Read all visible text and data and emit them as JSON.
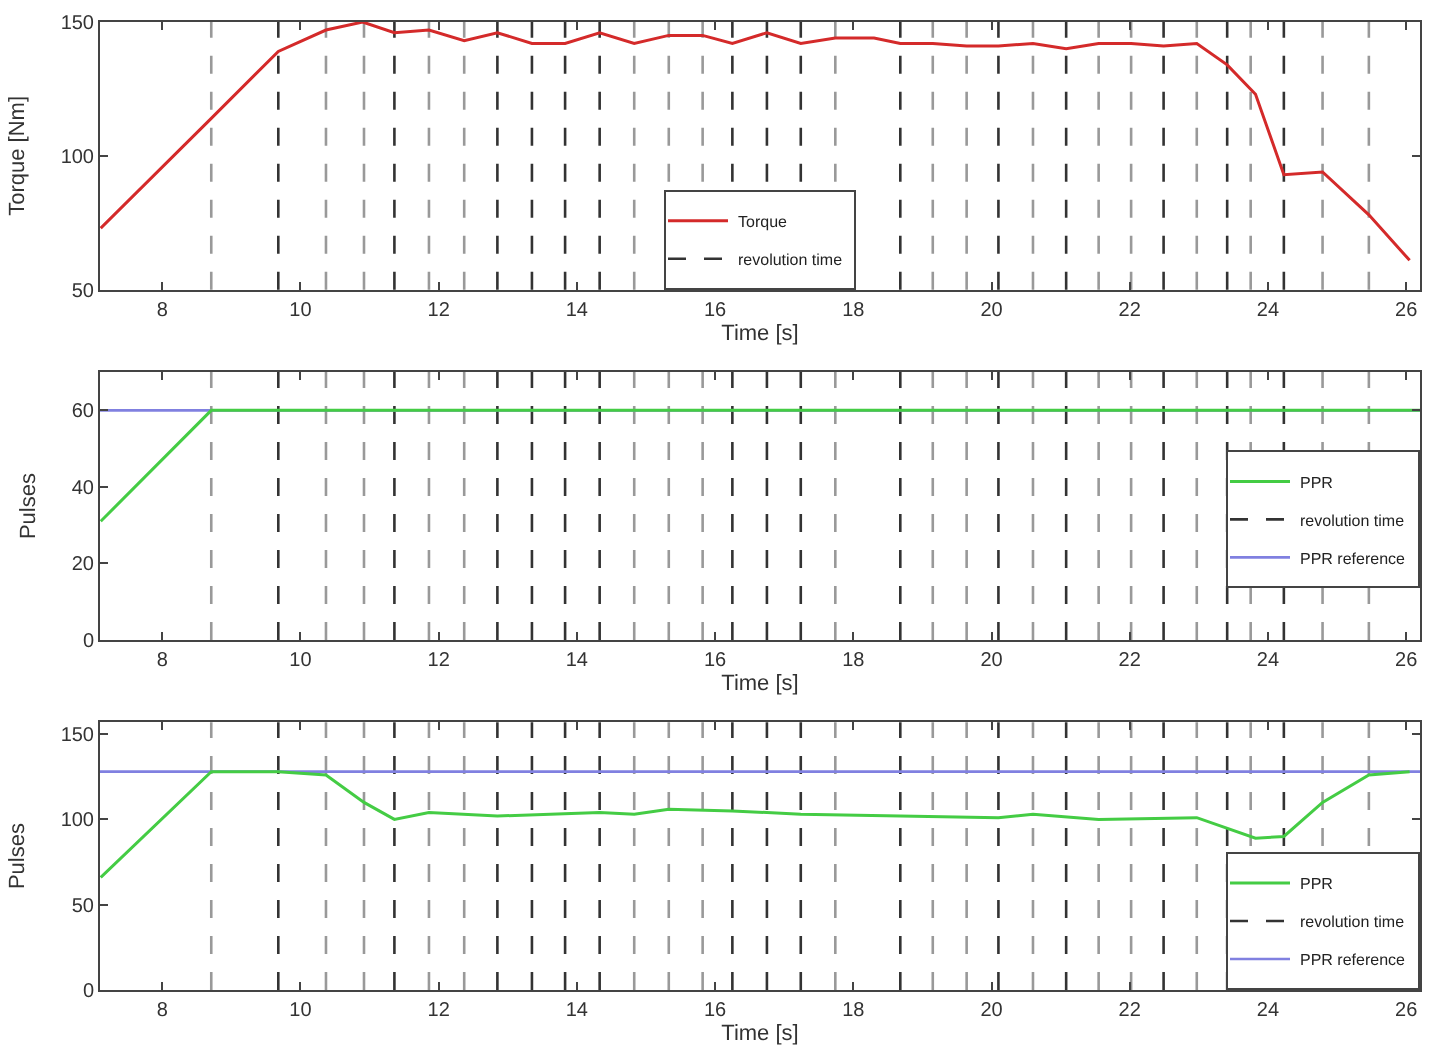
{
  "chart_data": [
    {
      "type": "line",
      "xlabel": "Time [s]",
      "ylabel": "Torque [Nm]",
      "xlim": [
        7.1,
        26.2
      ],
      "xticks": [
        8,
        10,
        12,
        14,
        16,
        18,
        20,
        22,
        24,
        26
      ],
      "ylim": [
        50,
        150
      ],
      "yticks": [
        50,
        100,
        150
      ],
      "legend": "bottom",
      "grid": false,
      "line_style": "solid",
      "series": [
        {
          "name": "Torque",
          "color": "#d42a2a",
          "x": [
            7.11,
            8.71,
            9.68,
            10.37,
            10.9,
            11.36,
            11.86,
            12.37,
            12.85,
            13.35,
            13.83,
            14.33,
            14.83,
            15.33,
            15.82,
            16.25,
            16.75,
            17.24,
            17.74,
            18.3,
            18.68,
            19.15,
            19.64,
            20.1,
            20.6,
            21.08,
            21.55,
            22.02,
            22.49,
            22.97,
            23.41,
            23.82,
            24.23,
            24.79,
            25.46,
            26.05
          ],
          "values": [
            73,
            114,
            139,
            147,
            150,
            146,
            147,
            143,
            146,
            142,
            142,
            146,
            142,
            145,
            145,
            142,
            146,
            142,
            144,
            144,
            142,
            142,
            141,
            141,
            142,
            140,
            142,
            142,
            141,
            142,
            134,
            123,
            93,
            94,
            78,
            61
          ]
        }
      ],
      "ref_lines": [
        {
          "axis": "x",
          "value": 8.71,
          "color": "#999999",
          "line_style": "dashed"
        },
        {
          "axis": "x",
          "value": 9.68,
          "color": "#333333",
          "line_style": "dashed",
          "label": "revolution time"
        },
        {
          "axis": "x",
          "value": 10.37,
          "color": "#999999",
          "line_style": "dashed"
        },
        {
          "axis": "x",
          "value": 10.92,
          "color": "#999999",
          "line_style": "dashed"
        },
        {
          "axis": "x",
          "value": 11.36,
          "color": "#333333",
          "line_style": "dashed"
        },
        {
          "axis": "x",
          "value": 11.86,
          "color": "#999999",
          "line_style": "dashed"
        },
        {
          "axis": "x",
          "value": 12.37,
          "color": "#999999",
          "line_style": "dashed"
        },
        {
          "axis": "x",
          "value": 12.85,
          "color": "#333333",
          "line_style": "dashed"
        },
        {
          "axis": "x",
          "value": 13.35,
          "color": "#333333",
          "line_style": "dashed"
        },
        {
          "axis": "x",
          "value": 13.83,
          "color": "#333333",
          "line_style": "dashed"
        },
        {
          "axis": "x",
          "value": 14.33,
          "color": "#333333",
          "line_style": "dashed"
        },
        {
          "axis": "x",
          "value": 14.83,
          "color": "#999999",
          "line_style": "dashed"
        },
        {
          "axis": "x",
          "value": 15.33,
          "color": "#999999",
          "line_style": "dashed"
        },
        {
          "axis": "x",
          "value": 15.82,
          "color": "#999999",
          "line_style": "dashed"
        },
        {
          "axis": "x",
          "value": 16.25,
          "color": "#333333",
          "line_style": "dashed"
        },
        {
          "axis": "x",
          "value": 16.75,
          "color": "#333333",
          "line_style": "dashed"
        },
        {
          "axis": "x",
          "value": 17.24,
          "color": "#333333",
          "line_style": "dashed"
        },
        {
          "axis": "x",
          "value": 17.74,
          "color": "#999999",
          "line_style": "dashed"
        },
        {
          "axis": "x",
          "value": 18.68,
          "color": "#333333",
          "line_style": "dashed"
        },
        {
          "axis": "x",
          "value": 19.15,
          "color": "#999999",
          "line_style": "dashed"
        },
        {
          "axis": "x",
          "value": 19.64,
          "color": "#999999",
          "line_style": "dashed"
        },
        {
          "axis": "x",
          "value": 20.1,
          "color": "#333333",
          "line_style": "dashed"
        },
        {
          "axis": "x",
          "value": 20.6,
          "color": "#999999",
          "line_style": "dashed"
        },
        {
          "axis": "x",
          "value": 21.08,
          "color": "#333333",
          "line_style": "dashed"
        },
        {
          "axis": "x",
          "value": 21.55,
          "color": "#999999",
          "line_style": "dashed"
        },
        {
          "axis": "x",
          "value": 22.02,
          "color": "#999999",
          "line_style": "dashed"
        },
        {
          "axis": "x",
          "value": 22.49,
          "color": "#333333",
          "line_style": "dashed"
        },
        {
          "axis": "x",
          "value": 22.97,
          "color": "#999999",
          "line_style": "dashed"
        },
        {
          "axis": "x",
          "value": 23.41,
          "color": "#333333",
          "line_style": "dashed"
        },
        {
          "axis": "x",
          "value": 23.75,
          "color": "#999999",
          "line_style": "dashed"
        },
        {
          "axis": "x",
          "value": 24.23,
          "color": "#333333",
          "line_style": "dashed"
        },
        {
          "axis": "x",
          "value": 24.79,
          "color": "#999999",
          "line_style": "dashed"
        },
        {
          "axis": "x",
          "value": 25.46,
          "color": "#999999",
          "line_style": "dashed"
        }
      ]
    },
    {
      "type": "line",
      "xlabel": "Time [s]",
      "ylabel": "Pulses",
      "xlim": [
        7.1,
        26.2
      ],
      "xticks": [
        8,
        10,
        12,
        14,
        16,
        18,
        20,
        22,
        24,
        26
      ],
      "ylim": [
        0,
        70
      ],
      "yticks": [
        0,
        20,
        40,
        60
      ],
      "legend": "right",
      "grid": false,
      "line_style": "solid",
      "series": [
        {
          "name": "PPR",
          "color": "#44cc44",
          "x": [
            7.11,
            8.71,
            26.2
          ],
          "values": [
            31,
            60,
            60
          ]
        }
      ],
      "ref_lines": [
        {
          "axis": "x",
          "value": 8.71,
          "color": "#999999",
          "line_style": "dashed"
        },
        {
          "axis": "x",
          "value": 9.68,
          "color": "#333333",
          "line_style": "dashed",
          "label": "revolution time"
        },
        {
          "axis": "x",
          "value": 10.37,
          "color": "#999999",
          "line_style": "dashed"
        },
        {
          "axis": "x",
          "value": 10.92,
          "color": "#999999",
          "line_style": "dashed"
        },
        {
          "axis": "x",
          "value": 11.36,
          "color": "#333333",
          "line_style": "dashed"
        },
        {
          "axis": "x",
          "value": 11.86,
          "color": "#999999",
          "line_style": "dashed"
        },
        {
          "axis": "x",
          "value": 12.37,
          "color": "#999999",
          "line_style": "dashed"
        },
        {
          "axis": "x",
          "value": 12.85,
          "color": "#333333",
          "line_style": "dashed"
        },
        {
          "axis": "x",
          "value": 13.35,
          "color": "#333333",
          "line_style": "dashed"
        },
        {
          "axis": "x",
          "value": 13.83,
          "color": "#333333",
          "line_style": "dashed"
        },
        {
          "axis": "x",
          "value": 14.33,
          "color": "#333333",
          "line_style": "dashed"
        },
        {
          "axis": "x",
          "value": 14.83,
          "color": "#999999",
          "line_style": "dashed"
        },
        {
          "axis": "x",
          "value": 15.33,
          "color": "#999999",
          "line_style": "dashed"
        },
        {
          "axis": "x",
          "value": 15.82,
          "color": "#999999",
          "line_style": "dashed"
        },
        {
          "axis": "x",
          "value": 16.25,
          "color": "#333333",
          "line_style": "dashed"
        },
        {
          "axis": "x",
          "value": 16.75,
          "color": "#333333",
          "line_style": "dashed"
        },
        {
          "axis": "x",
          "value": 17.24,
          "color": "#333333",
          "line_style": "dashed"
        },
        {
          "axis": "x",
          "value": 17.74,
          "color": "#999999",
          "line_style": "dashed"
        },
        {
          "axis": "x",
          "value": 18.68,
          "color": "#333333",
          "line_style": "dashed"
        },
        {
          "axis": "x",
          "value": 19.15,
          "color": "#999999",
          "line_style": "dashed"
        },
        {
          "axis": "x",
          "value": 19.64,
          "color": "#999999",
          "line_style": "dashed"
        },
        {
          "axis": "x",
          "value": 20.1,
          "color": "#333333",
          "line_style": "dashed"
        },
        {
          "axis": "x",
          "value": 20.6,
          "color": "#999999",
          "line_style": "dashed"
        },
        {
          "axis": "x",
          "value": 21.08,
          "color": "#333333",
          "line_style": "dashed"
        },
        {
          "axis": "x",
          "value": 21.55,
          "color": "#999999",
          "line_style": "dashed"
        },
        {
          "axis": "x",
          "value": 22.02,
          "color": "#999999",
          "line_style": "dashed"
        },
        {
          "axis": "x",
          "value": 22.49,
          "color": "#333333",
          "line_style": "dashed"
        },
        {
          "axis": "x",
          "value": 22.97,
          "color": "#999999",
          "line_style": "dashed"
        },
        {
          "axis": "x",
          "value": 23.41,
          "color": "#333333",
          "line_style": "dashed"
        },
        {
          "axis": "x",
          "value": 23.75,
          "color": "#999999",
          "line_style": "dashed"
        },
        {
          "axis": "x",
          "value": 24.23,
          "color": "#333333",
          "line_style": "dashed"
        },
        {
          "axis": "x",
          "value": 24.79,
          "color": "#999999",
          "line_style": "dashed"
        },
        {
          "axis": "x",
          "value": 25.46,
          "color": "#999999",
          "line_style": "dashed"
        },
        {
          "axis": "y",
          "value": 60,
          "color": "#8080e0",
          "line_style": "solid",
          "label": "PPR reference"
        }
      ]
    },
    {
      "type": "line",
      "xlabel": "Time [s]",
      "ylabel": "Pulses",
      "xlim": [
        7.1,
        26.2
      ],
      "xticks": [
        8,
        10,
        12,
        14,
        16,
        18,
        20,
        22,
        24,
        26
      ],
      "ylim": [
        0,
        157
      ],
      "yticks": [
        0,
        50,
        100,
        150
      ],
      "legend": "bottom right",
      "grid": false,
      "line_style": "solid",
      "series": [
        {
          "name": "PPR",
          "color": "#44cc44",
          "x": [
            7.11,
            8.71,
            9.68,
            10.37,
            10.92,
            11.36,
            11.86,
            12.85,
            14.33,
            14.83,
            15.33,
            16.25,
            17.24,
            18.68,
            20.1,
            20.6,
            21.55,
            22.97,
            23.82,
            24.23,
            24.79,
            25.46,
            26.05
          ],
          "values": [
            66,
            128,
            128,
            126,
            110,
            100,
            104,
            102,
            104,
            103,
            106,
            105,
            103,
            102,
            101,
            103,
            100,
            101,
            89,
            90,
            110,
            126,
            128
          ]
        }
      ],
      "ref_lines": [
        {
          "axis": "x",
          "value": 8.71,
          "color": "#999999",
          "line_style": "dashed"
        },
        {
          "axis": "x",
          "value": 9.68,
          "color": "#333333",
          "line_style": "dashed",
          "label": "revolution time"
        },
        {
          "axis": "x",
          "value": 10.37,
          "color": "#999999",
          "line_style": "dashed"
        },
        {
          "axis": "x",
          "value": 10.92,
          "color": "#999999",
          "line_style": "dashed"
        },
        {
          "axis": "x",
          "value": 11.36,
          "color": "#333333",
          "line_style": "dashed"
        },
        {
          "axis": "x",
          "value": 11.86,
          "color": "#999999",
          "line_style": "dashed"
        },
        {
          "axis": "x",
          "value": 12.37,
          "color": "#999999",
          "line_style": "dashed"
        },
        {
          "axis": "x",
          "value": 12.85,
          "color": "#333333",
          "line_style": "dashed"
        },
        {
          "axis": "x",
          "value": 13.35,
          "color": "#333333",
          "line_style": "dashed"
        },
        {
          "axis": "x",
          "value": 13.83,
          "color": "#333333",
          "line_style": "dashed"
        },
        {
          "axis": "x",
          "value": 14.33,
          "color": "#333333",
          "line_style": "dashed"
        },
        {
          "axis": "x",
          "value": 14.83,
          "color": "#999999",
          "line_style": "dashed"
        },
        {
          "axis": "x",
          "value": 15.33,
          "color": "#999999",
          "line_style": "dashed"
        },
        {
          "axis": "x",
          "value": 15.82,
          "color": "#999999",
          "line_style": "dashed"
        },
        {
          "axis": "x",
          "value": 16.25,
          "color": "#333333",
          "line_style": "dashed"
        },
        {
          "axis": "x",
          "value": 16.75,
          "color": "#333333",
          "line_style": "dashed"
        },
        {
          "axis": "x",
          "value": 17.24,
          "color": "#333333",
          "line_style": "dashed"
        },
        {
          "axis": "x",
          "value": 17.74,
          "color": "#999999",
          "line_style": "dashed"
        },
        {
          "axis": "x",
          "value": 18.68,
          "color": "#333333",
          "line_style": "dashed"
        },
        {
          "axis": "x",
          "value": 19.15,
          "color": "#999999",
          "line_style": "dashed"
        },
        {
          "axis": "x",
          "value": 19.64,
          "color": "#999999",
          "line_style": "dashed"
        },
        {
          "axis": "x",
          "value": 20.1,
          "color": "#333333",
          "line_style": "dashed"
        },
        {
          "axis": "x",
          "value": 20.6,
          "color": "#999999",
          "line_style": "dashed"
        },
        {
          "axis": "x",
          "value": 21.08,
          "color": "#333333",
          "line_style": "dashed"
        },
        {
          "axis": "x",
          "value": 21.55,
          "color": "#999999",
          "line_style": "dashed"
        },
        {
          "axis": "x",
          "value": 22.02,
          "color": "#999999",
          "line_style": "dashed"
        },
        {
          "axis": "x",
          "value": 22.49,
          "color": "#333333",
          "line_style": "dashed"
        },
        {
          "axis": "x",
          "value": 22.97,
          "color": "#999999",
          "line_style": "dashed"
        },
        {
          "axis": "x",
          "value": 23.41,
          "color": "#333333",
          "line_style": "dashed"
        },
        {
          "axis": "x",
          "value": 23.75,
          "color": "#999999",
          "line_style": "dashed"
        },
        {
          "axis": "x",
          "value": 24.23,
          "color": "#333333",
          "line_style": "dashed"
        },
        {
          "axis": "x",
          "value": 24.79,
          "color": "#999999",
          "line_style": "dashed"
        },
        {
          "axis": "x",
          "value": 25.46,
          "color": "#999999",
          "line_style": "dashed"
        },
        {
          "axis": "y",
          "value": 128,
          "color": "#8080e0",
          "line_style": "solid",
          "label": "PPR reference"
        }
      ]
    }
  ]
}
